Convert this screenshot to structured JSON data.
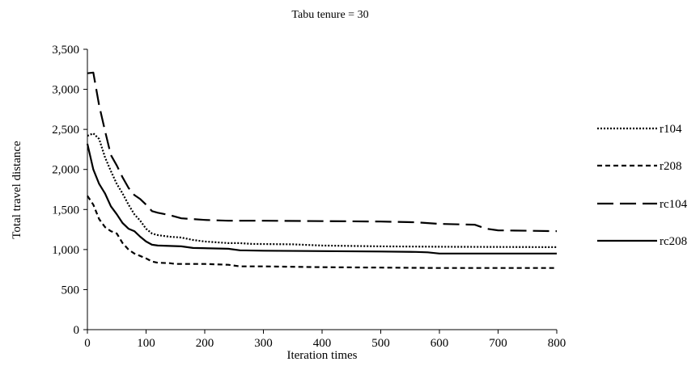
{
  "chart_data": {
    "type": "line",
    "title": "Tabu tenure = 30",
    "xlabel": "Iteration times",
    "ylabel": "Total travel distance",
    "xlim": [
      0,
      800
    ],
    "ylim": [
      0,
      3500
    ],
    "x_ticks": [
      0,
      100,
      200,
      300,
      400,
      500,
      600,
      700,
      800
    ],
    "y_ticks": [
      0,
      500,
      1000,
      1500,
      2000,
      2500,
      3000,
      3500
    ],
    "x_tick_labels": [
      "0",
      "100",
      "200",
      "300",
      "400",
      "500",
      "600",
      "700",
      "800"
    ],
    "y_tick_labels": [
      "0",
      "500",
      "1,000",
      "1,500",
      "2,000",
      "2,500",
      "3,000",
      "3,500"
    ],
    "grid": false,
    "legend_position": "right",
    "series": [
      {
        "name": "r104",
        "dash": "dotted",
        "color": "#000000",
        "points": [
          [
            0,
            2420
          ],
          [
            10,
            2450
          ],
          [
            20,
            2380
          ],
          [
            30,
            2150
          ],
          [
            40,
            1980
          ],
          [
            50,
            1820
          ],
          [
            60,
            1700
          ],
          [
            70,
            1560
          ],
          [
            80,
            1440
          ],
          [
            90,
            1360
          ],
          [
            100,
            1260
          ],
          [
            110,
            1200
          ],
          [
            120,
            1180
          ],
          [
            140,
            1160
          ],
          [
            160,
            1150
          ],
          [
            180,
            1120
          ],
          [
            200,
            1100
          ],
          [
            220,
            1090
          ],
          [
            240,
            1080
          ],
          [
            260,
            1080
          ],
          [
            280,
            1070
          ],
          [
            350,
            1065
          ],
          [
            400,
            1050
          ],
          [
            500,
            1040
          ],
          [
            600,
            1035
          ],
          [
            800,
            1030
          ]
        ]
      },
      {
        "name": "r208",
        "dash": "dashed",
        "color": "#000000",
        "points": [
          [
            0,
            1670
          ],
          [
            10,
            1560
          ],
          [
            20,
            1380
          ],
          [
            30,
            1280
          ],
          [
            40,
            1230
          ],
          [
            50,
            1200
          ],
          [
            60,
            1080
          ],
          [
            70,
            1000
          ],
          [
            80,
            950
          ],
          [
            90,
            920
          ],
          [
            100,
            890
          ],
          [
            110,
            850
          ],
          [
            120,
            835
          ],
          [
            140,
            830
          ],
          [
            150,
            820
          ],
          [
            200,
            820
          ],
          [
            240,
            810
          ],
          [
            260,
            790
          ],
          [
            300,
            790
          ],
          [
            400,
            780
          ],
          [
            500,
            775
          ],
          [
            600,
            770
          ],
          [
            800,
            770
          ]
        ]
      },
      {
        "name": "rc104",
        "dash": "longdash",
        "color": "#000000",
        "points": [
          [
            0,
            3200
          ],
          [
            10,
            3210
          ],
          [
            20,
            2800
          ],
          [
            30,
            2480
          ],
          [
            40,
            2180
          ],
          [
            50,
            2050
          ],
          [
            60,
            1900
          ],
          [
            70,
            1770
          ],
          [
            80,
            1680
          ],
          [
            90,
            1630
          ],
          [
            100,
            1560
          ],
          [
            110,
            1480
          ],
          [
            120,
            1460
          ],
          [
            140,
            1430
          ],
          [
            160,
            1390
          ],
          [
            200,
            1370
          ],
          [
            240,
            1360
          ],
          [
            300,
            1360
          ],
          [
            400,
            1355
          ],
          [
            500,
            1350
          ],
          [
            560,
            1340
          ],
          [
            600,
            1320
          ],
          [
            660,
            1310
          ],
          [
            680,
            1260
          ],
          [
            700,
            1240
          ],
          [
            800,
            1230
          ]
        ]
      },
      {
        "name": "rc208",
        "dash": "solid",
        "color": "#000000",
        "points": [
          [
            0,
            2320
          ],
          [
            10,
            2000
          ],
          [
            20,
            1820
          ],
          [
            30,
            1700
          ],
          [
            40,
            1540
          ],
          [
            50,
            1440
          ],
          [
            60,
            1330
          ],
          [
            70,
            1260
          ],
          [
            80,
            1230
          ],
          [
            90,
            1160
          ],
          [
            100,
            1100
          ],
          [
            110,
            1060
          ],
          [
            120,
            1050
          ],
          [
            160,
            1040
          ],
          [
            180,
            1020
          ],
          [
            240,
            1010
          ],
          [
            260,
            990
          ],
          [
            300,
            985
          ],
          [
            400,
            980
          ],
          [
            500,
            975
          ],
          [
            560,
            970
          ],
          [
            580,
            965
          ],
          [
            600,
            950
          ],
          [
            800,
            950
          ]
        ]
      }
    ]
  }
}
